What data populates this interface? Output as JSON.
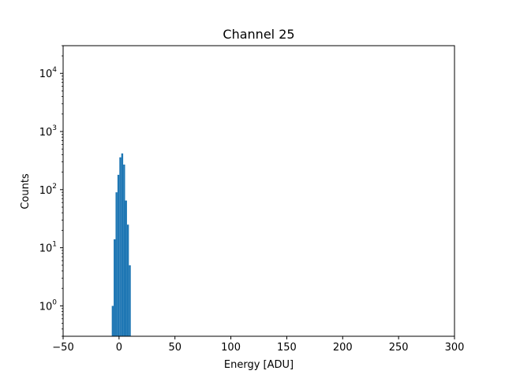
{
  "chart_data": {
    "type": "bar",
    "title": "Channel 25",
    "xlabel": "Energy [ADU]",
    "ylabel": "Counts",
    "xlim": [
      -50,
      300
    ],
    "ylim": [
      0.3,
      30000
    ],
    "yscale": "log",
    "grid": false,
    "bar_color": "#1f77b4",
    "x_ticks": [
      "−50",
      "0",
      "50",
      "100",
      "150",
      "200",
      "250",
      "300"
    ],
    "x_tick_values": [
      -50,
      0,
      50,
      100,
      150,
      200,
      250,
      300
    ],
    "y_ticks": [
      {
        "value": 1,
        "base": "10",
        "exp": "0"
      },
      {
        "value": 10,
        "base": "10",
        "exp": "1"
      },
      {
        "value": 100,
        "base": "10",
        "exp": "2"
      },
      {
        "value": 1000,
        "base": "10",
        "exp": "3"
      },
      {
        "value": 10000,
        "base": "10",
        "exp": "4"
      }
    ],
    "bins": [
      {
        "x0": -6.5,
        "x1": -4.8,
        "count": 1
      },
      {
        "x0": -4.8,
        "x1": -3.1,
        "count": 14
      },
      {
        "x0": -3.1,
        "x1": -1.4,
        "count": 90
      },
      {
        "x0": -1.4,
        "x1": 0.3,
        "count": 180
      },
      {
        "x0": 0.3,
        "x1": 2.0,
        "count": 360
      },
      {
        "x0": 2.0,
        "x1": 3.7,
        "count": 420
      },
      {
        "x0": 3.7,
        "x1": 5.4,
        "count": 270
      },
      {
        "x0": 5.4,
        "x1": 7.1,
        "count": 65
      },
      {
        "x0": 7.1,
        "x1": 8.8,
        "count": 25
      },
      {
        "x0": 8.8,
        "x1": 10.5,
        "count": 5
      }
    ]
  }
}
